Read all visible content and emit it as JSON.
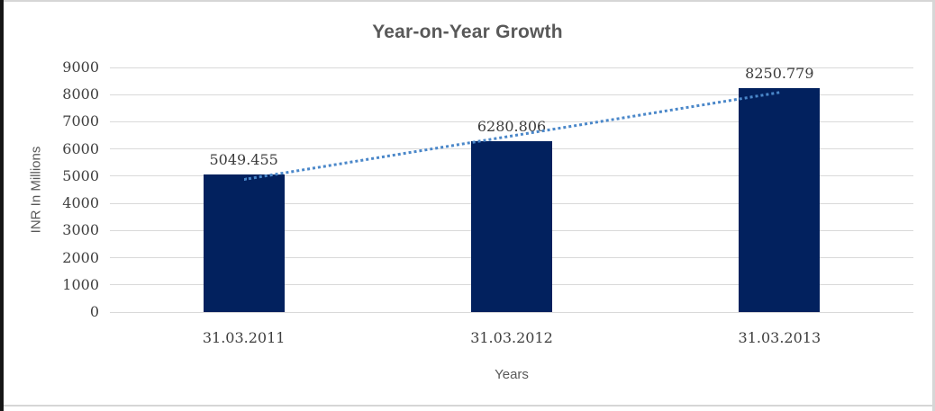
{
  "frame": {
    "background": "#ffffff",
    "border_color": "#d6d6d6",
    "left_edge_color": "#161616"
  },
  "chart_data": {
    "type": "bar",
    "title": "Year-on-Year Growth",
    "categories": [
      "31.03.2011",
      "31.03.2012",
      "31.03.2013"
    ],
    "values": [
      5049.455,
      6280.806,
      8250.779
    ],
    "data_labels": [
      "5049.455",
      "6280.806",
      "8250.779"
    ],
    "xlabel": "Years",
    "ylabel": "INR In Millions",
    "ylim": [
      0,
      9000
    ],
    "ytick_step": 1000,
    "yticks": [
      "9000",
      "8000",
      "7000",
      "6000",
      "5000",
      "4000",
      "3000",
      "2000",
      "1000",
      "0"
    ],
    "grid": "horizontal",
    "legend": "none",
    "trendline": {
      "type": "linear",
      "style": "dotted"
    },
    "colors": {
      "bar": "#02215e",
      "trendline": "#4a87c9",
      "gridline": "#d9d9d9",
      "tick_text": "#3f3f3f",
      "title_text": "#595959"
    }
  }
}
